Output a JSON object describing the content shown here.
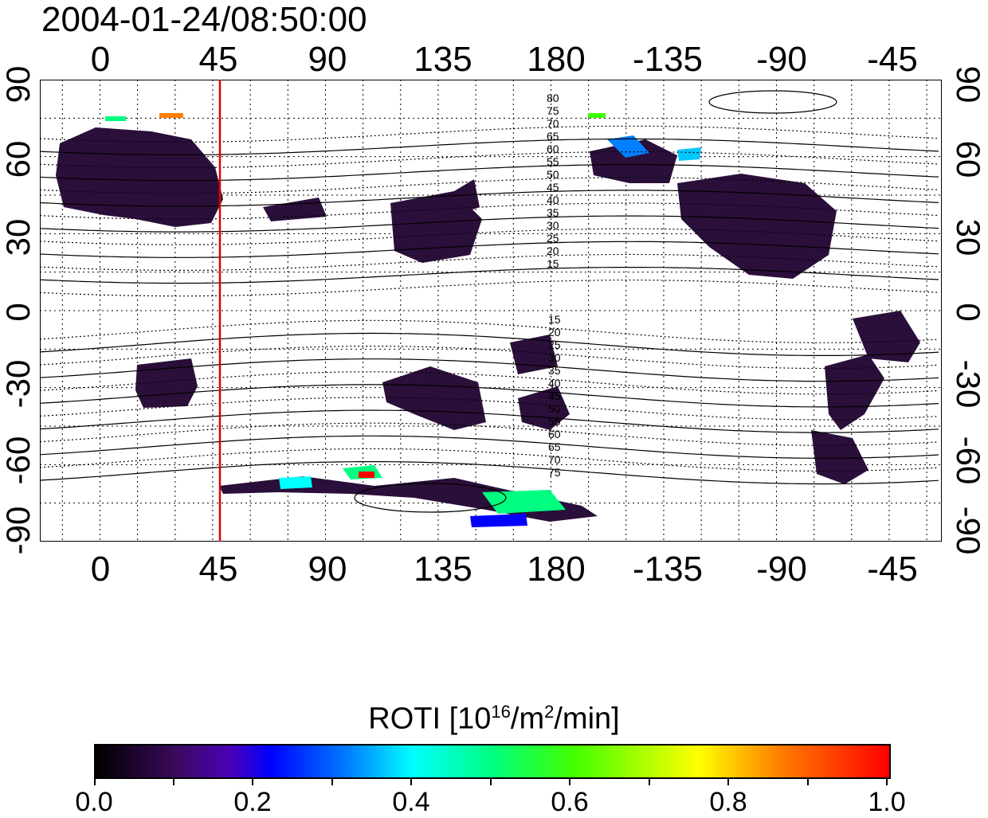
{
  "timestamp": "2004-01-24/08:50:00",
  "axes": {
    "top_lon_labels": [
      "0",
      "45",
      "90",
      "135",
      "180",
      "-135",
      "-90",
      "-45"
    ],
    "bottom_lon_labels": [
      "0",
      "45",
      "90",
      "135",
      "180",
      "-135",
      "-90",
      "-45"
    ],
    "left_lat_labels": [
      "90",
      "60",
      "30",
      "0",
      "-30",
      "-60",
      "-90"
    ],
    "right_lat_labels": [
      "90",
      "60",
      "30",
      "0",
      "-30",
      "-60",
      "-90"
    ],
    "lon_range": [
      -24,
      336
    ],
    "lat_range": [
      -90,
      90
    ],
    "grid": "dotted, every 15 degrees"
  },
  "terminator_line": {
    "longitude": 48,
    "color": "#e00000"
  },
  "magnetic_latitude_labels": {
    "north": [
      "80",
      "75",
      "70",
      "65",
      "60",
      "55",
      "50",
      "45",
      "40",
      "35",
      "30",
      "25",
      "20",
      "15"
    ],
    "south": [
      "15",
      "20",
      "25",
      "30",
      "35",
      "40",
      "45",
      "50",
      "55",
      "60",
      "65",
      "70",
      "75"
    ]
  },
  "colorbar": {
    "title_main": "ROTI  [10",
    "title_exp1": "16",
    "title_mid": "/m",
    "title_exp2": "2",
    "title_end": "/min]",
    "tick_labels": [
      "0.0",
      "0.2",
      "0.4",
      "0.6",
      "0.8",
      "1.0"
    ],
    "range": [
      0.0,
      1.0
    ]
  }
}
